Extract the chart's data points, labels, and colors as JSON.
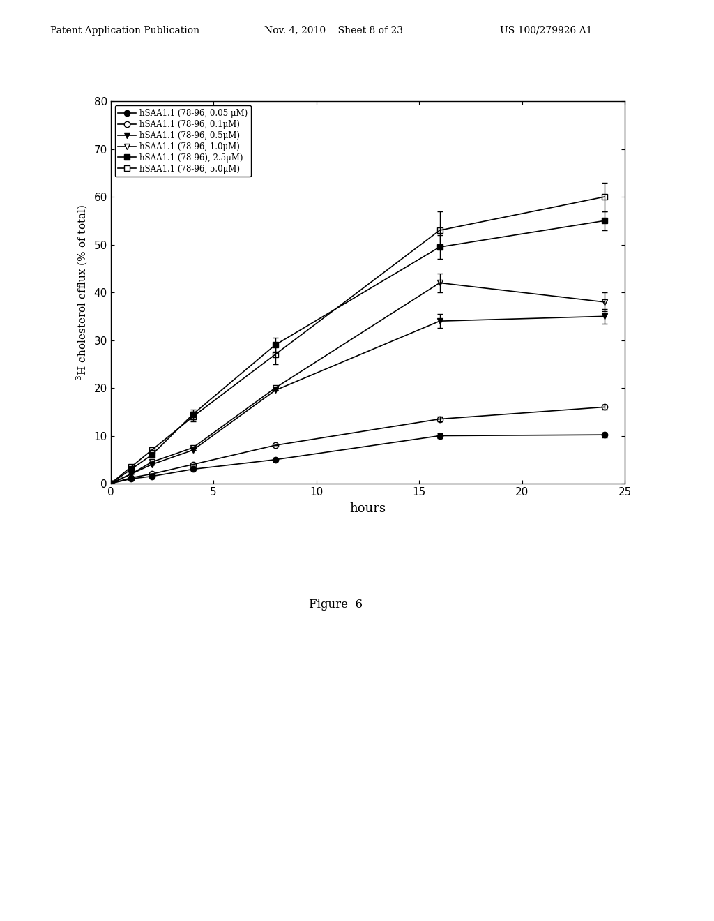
{
  "x": [
    0,
    1,
    2,
    4,
    8,
    16,
    24
  ],
  "series": [
    {
      "label": "hSAA1.1 (78-96, 0.05 μM)",
      "y": [
        0,
        1.0,
        1.5,
        3.0,
        5.0,
        10.0,
        10.2
      ],
      "yerr": [
        0,
        0,
        0,
        0,
        0,
        0.5,
        0.5
      ],
      "marker": "o",
      "fillstyle": "full",
      "color": "black",
      "markersize": 6
    },
    {
      "label": "hSAA1.1 (78-96, 0.1μM)",
      "y": [
        0,
        1.2,
        2.0,
        4.0,
        8.0,
        13.5,
        16.0
      ],
      "yerr": [
        0,
        0,
        0,
        0,
        0,
        0.5,
        0.5
      ],
      "marker": "o",
      "fillstyle": "none",
      "color": "black",
      "markersize": 6
    },
    {
      "label": "hSAA1.1 (78-96, 0.5μM)",
      "y": [
        0,
        2.0,
        4.0,
        7.0,
        19.5,
        34.0,
        35.0
      ],
      "yerr": [
        0,
        0,
        0,
        0,
        0,
        1.5,
        1.5
      ],
      "marker": "v",
      "fillstyle": "full",
      "color": "black",
      "markersize": 6
    },
    {
      "label": "hSAA1.1 (78-96, 1.0μM)",
      "y": [
        0,
        2.0,
        4.5,
        7.5,
        20.0,
        42.0,
        38.0
      ],
      "yerr": [
        0,
        0,
        0,
        0,
        0,
        2.0,
        2.0
      ],
      "marker": "v",
      "fillstyle": "none",
      "color": "black",
      "markersize": 6
    },
    {
      "label": "hSAA1.1 (78-96), 2.5μM)",
      "y": [
        0,
        3.0,
        6.0,
        14.5,
        29.0,
        49.5,
        55.0
      ],
      "yerr": [
        0,
        0,
        0,
        1.0,
        1.5,
        2.5,
        2.0
      ],
      "marker": "s",
      "fillstyle": "full",
      "color": "black",
      "markersize": 6
    },
    {
      "label": "hSAA1.1 (78-96, 5.0μM)",
      "y": [
        0,
        3.5,
        7.0,
        14.0,
        27.0,
        53.0,
        60.0
      ],
      "yerr": [
        0,
        0,
        0,
        1.0,
        2.0,
        4.0,
        3.0
      ],
      "marker": "s",
      "fillstyle": "none",
      "color": "black",
      "markersize": 6
    }
  ],
  "xlabel": "hours",
  "ylabel": "$^3$H-cholesterol efflux (% of total)",
  "xlim": [
    0,
    25
  ],
  "ylim": [
    0,
    80
  ],
  "xticks": [
    0,
    5,
    10,
    15,
    20,
    25
  ],
  "yticks": [
    0,
    10,
    20,
    30,
    40,
    50,
    60,
    70,
    80
  ],
  "figure_label": "Figure  6",
  "header_left": "Patent Application Publication",
  "header_mid": "Nov. 4, 2010    Sheet 8 of 23",
  "header_right": "US 100/279926 A1",
  "background_color": "#ffffff",
  "legend_labels": [
    "hSAA1.1 (78-96, 0.05 μM)",
    "hSAA1.1 (78-96, 0.1μM)",
    "hSAA1.1 (78-96, 0.5μM)",
    "hSAA1.1 (78-96, 1.0μM)",
    "hSAA1.1 (78-96), 2.5μM)",
    "hSAA1.1 (78-96, 5.0μM)"
  ]
}
